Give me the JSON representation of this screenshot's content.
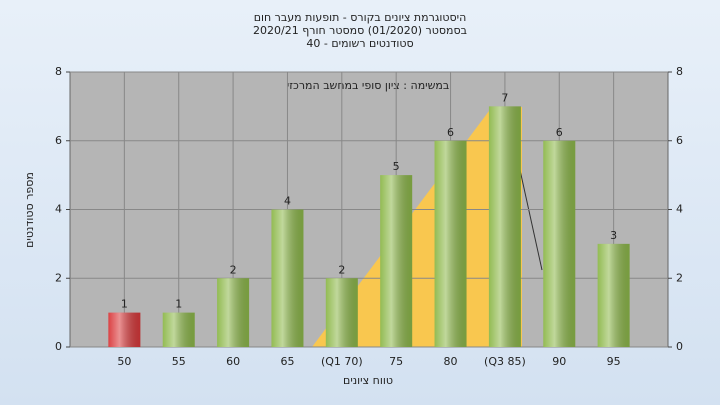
{
  "chart_data": {
    "type": "bar",
    "title": "היסטוגרמת ציונים בקורס - תופעות מעבר חום",
    "subtitle": "בסמסטר  (01/2020)  סמסטר חורף  2020/21",
    "subtitle2": "סטודנטים רשומים - 40",
    "annotation": "במשימה : ציון סופי במחשב המרכזי",
    "x_label": "טווח ציונים",
    "y_label": "מספר סטודנטים",
    "categories": [
      "50",
      "55",
      "60",
      "65",
      "(Q1 70)",
      "75",
      "80",
      "(Q3 85)",
      "90",
      "95"
    ],
    "values": [
      1,
      1,
      2,
      4,
      2,
      5,
      6,
      7,
      6,
      3
    ],
    "colors": [
      "#d9383a",
      "#8db84a",
      "#8db84a",
      "#8db84a",
      "#8db84a",
      "#8db84a",
      "#8db84a",
      "#8db84a",
      "#8db84a",
      "#8db84a"
    ],
    "ylim": [
      0,
      8
    ],
    "yticks": [
      0,
      2,
      4,
      6,
      8
    ],
    "grid": true
  }
}
